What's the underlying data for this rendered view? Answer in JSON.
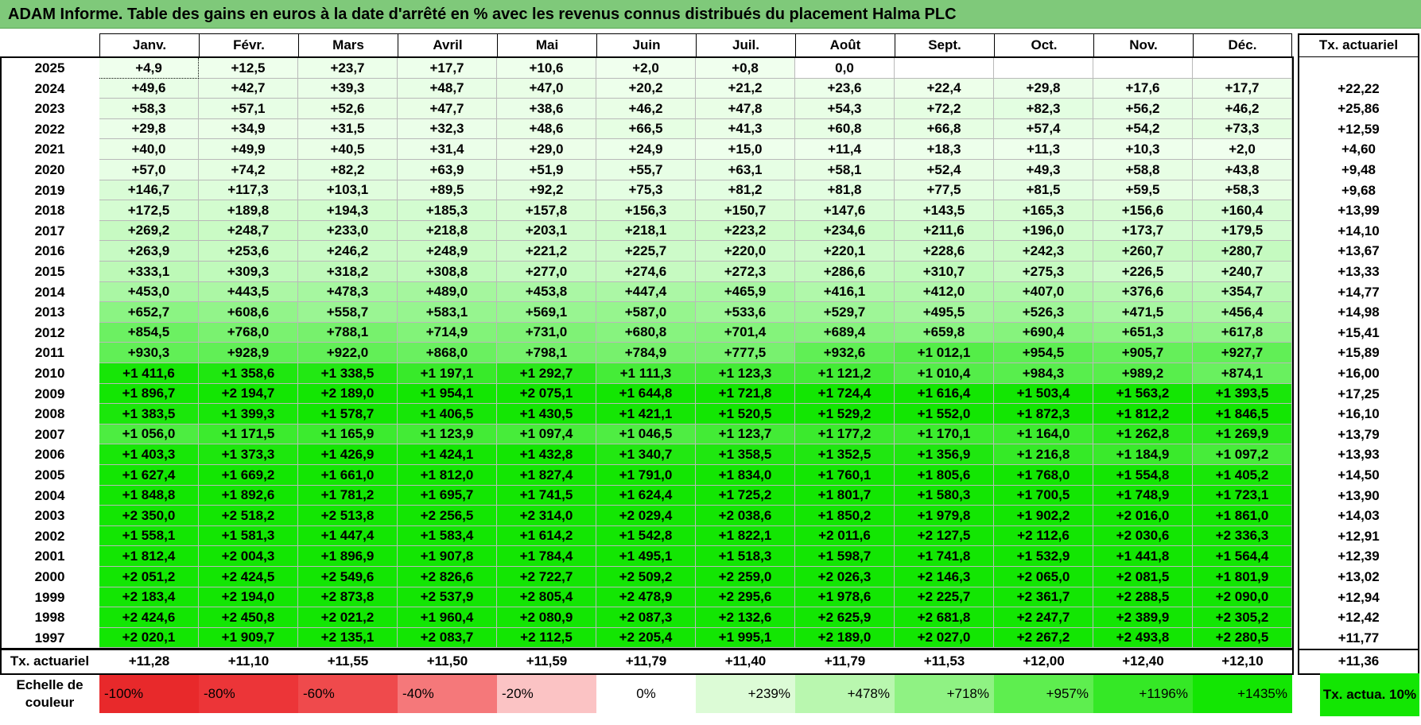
{
  "title": "ADAM Informe. Table des gains en euros à la date d'arrêté en % avec les revenus connus distribués du placement Halma PLC",
  "months": [
    "Janv.",
    "Févr.",
    "Mars",
    "Avril",
    "Mai",
    "Juin",
    "Juil.",
    "Août",
    "Sept.",
    "Oct.",
    "Nov.",
    "Déc."
  ],
  "tx_header": "Tx. actuariel",
  "rows": [
    {
      "year": "2025",
      "values": [
        "+4,9",
        "+12,5",
        "+23,7",
        "+17,7",
        "+10,6",
        "+2,0",
        "+0,8",
        "0,0",
        "",
        "",
        "",
        ""
      ],
      "tx": ""
    },
    {
      "year": "2024",
      "values": [
        "+49,6",
        "+42,7",
        "+39,3",
        "+48,7",
        "+47,0",
        "+20,2",
        "+21,2",
        "+23,6",
        "+22,4",
        "+29,8",
        "+17,6",
        "+17,7"
      ],
      "tx": "+22,22"
    },
    {
      "year": "2023",
      "values": [
        "+58,3",
        "+57,1",
        "+52,6",
        "+47,7",
        "+38,6",
        "+46,2",
        "+47,8",
        "+54,3",
        "+72,2",
        "+82,3",
        "+56,2",
        "+46,2"
      ],
      "tx": "+25,86"
    },
    {
      "year": "2022",
      "values": [
        "+29,8",
        "+34,9",
        "+31,5",
        "+32,3",
        "+48,6",
        "+66,5",
        "+41,3",
        "+60,8",
        "+66,8",
        "+57,4",
        "+54,2",
        "+73,3"
      ],
      "tx": "+12,59"
    },
    {
      "year": "2021",
      "values": [
        "+40,0",
        "+49,9",
        "+40,5",
        "+31,4",
        "+29,0",
        "+24,9",
        "+15,0",
        "+11,4",
        "+18,3",
        "+11,3",
        "+10,3",
        "+2,0"
      ],
      "tx": "+4,60"
    },
    {
      "year": "2020",
      "values": [
        "+57,0",
        "+74,2",
        "+82,2",
        "+63,9",
        "+51,9",
        "+55,7",
        "+63,1",
        "+58,1",
        "+52,4",
        "+49,3",
        "+58,8",
        "+43,8"
      ],
      "tx": "+9,48"
    },
    {
      "year": "2019",
      "values": [
        "+146,7",
        "+117,3",
        "+103,1",
        "+89,5",
        "+92,2",
        "+75,3",
        "+81,2",
        "+81,8",
        "+77,5",
        "+81,5",
        "+59,5",
        "+58,3"
      ],
      "tx": "+9,68"
    },
    {
      "year": "2018",
      "values": [
        "+172,5",
        "+189,8",
        "+194,3",
        "+185,3",
        "+157,8",
        "+156,3",
        "+150,7",
        "+147,6",
        "+143,5",
        "+165,3",
        "+156,6",
        "+160,4"
      ],
      "tx": "+13,99"
    },
    {
      "year": "2017",
      "values": [
        "+269,2",
        "+248,7",
        "+233,0",
        "+218,8",
        "+203,1",
        "+218,1",
        "+223,2",
        "+234,6",
        "+211,6",
        "+196,0",
        "+173,7",
        "+179,5"
      ],
      "tx": "+14,10"
    },
    {
      "year": "2016",
      "values": [
        "+263,9",
        "+253,6",
        "+246,2",
        "+248,9",
        "+221,2",
        "+225,7",
        "+220,0",
        "+220,1",
        "+228,6",
        "+242,3",
        "+260,7",
        "+280,7"
      ],
      "tx": "+13,67"
    },
    {
      "year": "2015",
      "values": [
        "+333,1",
        "+309,3",
        "+318,2",
        "+308,8",
        "+277,0",
        "+274,6",
        "+272,3",
        "+286,6",
        "+310,7",
        "+275,3",
        "+226,5",
        "+240,7"
      ],
      "tx": "+13,33"
    },
    {
      "year": "2014",
      "values": [
        "+453,0",
        "+443,5",
        "+478,3",
        "+489,0",
        "+453,8",
        "+447,4",
        "+465,9",
        "+416,1",
        "+412,0",
        "+407,0",
        "+376,6",
        "+354,7"
      ],
      "tx": "+14,77"
    },
    {
      "year": "2013",
      "values": [
        "+652,7",
        "+608,6",
        "+558,7",
        "+583,1",
        "+569,1",
        "+587,0",
        "+533,6",
        "+529,7",
        "+495,5",
        "+526,3",
        "+471,5",
        "+456,4"
      ],
      "tx": "+14,98"
    },
    {
      "year": "2012",
      "values": [
        "+854,5",
        "+768,0",
        "+788,1",
        "+714,9",
        "+731,0",
        "+680,8",
        "+701,4",
        "+689,4",
        "+659,8",
        "+690,4",
        "+651,3",
        "+617,8"
      ],
      "tx": "+15,41"
    },
    {
      "year": "2011",
      "values": [
        "+930,3",
        "+928,9",
        "+922,0",
        "+868,0",
        "+798,1",
        "+784,9",
        "+777,5",
        "+932,6",
        "+1 012,1",
        "+954,5",
        "+905,7",
        "+927,7"
      ],
      "tx": "+15,89"
    },
    {
      "year": "2010",
      "values": [
        "+1 411,6",
        "+1 358,6",
        "+1 338,5",
        "+1 197,1",
        "+1 292,7",
        "+1 111,3",
        "+1 123,3",
        "+1 121,2",
        "+1 010,4",
        "+984,3",
        "+989,2",
        "+874,1"
      ],
      "tx": "+16,00"
    },
    {
      "year": "2009",
      "values": [
        "+1 896,7",
        "+2 194,7",
        "+2 189,0",
        "+1 954,1",
        "+2 075,1",
        "+1 644,8",
        "+1 721,8",
        "+1 724,4",
        "+1 616,4",
        "+1 503,4",
        "+1 563,2",
        "+1 393,5"
      ],
      "tx": "+17,25"
    },
    {
      "year": "2008",
      "values": [
        "+1 383,5",
        "+1 399,3",
        "+1 578,7",
        "+1 406,5",
        "+1 430,5",
        "+1 421,1",
        "+1 520,5",
        "+1 529,2",
        "+1 552,0",
        "+1 872,3",
        "+1 812,2",
        "+1 846,5"
      ],
      "tx": "+16,10"
    },
    {
      "year": "2007",
      "values": [
        "+1 056,0",
        "+1 171,5",
        "+1 165,9",
        "+1 123,9",
        "+1 097,4",
        "+1 046,5",
        "+1 123,7",
        "+1 177,2",
        "+1 170,1",
        "+1 164,0",
        "+1 262,8",
        "+1 269,9"
      ],
      "tx": "+13,79"
    },
    {
      "year": "2006",
      "values": [
        "+1 403,3",
        "+1 373,3",
        "+1 426,9",
        "+1 424,1",
        "+1 432,8",
        "+1 340,7",
        "+1 358,5",
        "+1 352,5",
        "+1 356,9",
        "+1 216,8",
        "+1 184,9",
        "+1 097,2"
      ],
      "tx": "+13,93"
    },
    {
      "year": "2005",
      "values": [
        "+1 627,4",
        "+1 669,2",
        "+1 661,0",
        "+1 812,0",
        "+1 827,4",
        "+1 791,0",
        "+1 834,0",
        "+1 760,1",
        "+1 805,6",
        "+1 768,0",
        "+1 554,8",
        "+1 405,2"
      ],
      "tx": "+14,50"
    },
    {
      "year": "2004",
      "values": [
        "+1 848,8",
        "+1 892,6",
        "+1 781,2",
        "+1 695,7",
        "+1 741,5",
        "+1 624,4",
        "+1 725,2",
        "+1 801,7",
        "+1 580,3",
        "+1 700,5",
        "+1 748,9",
        "+1 723,1"
      ],
      "tx": "+13,90"
    },
    {
      "year": "2003",
      "values": [
        "+2 350,0",
        "+2 518,2",
        "+2 513,8",
        "+2 256,5",
        "+2 314,0",
        "+2 029,4",
        "+2 038,6",
        "+1 850,2",
        "+1 979,8",
        "+1 902,2",
        "+2 016,0",
        "+1 861,0"
      ],
      "tx": "+14,03"
    },
    {
      "year": "2002",
      "values": [
        "+1 558,1",
        "+1 581,3",
        "+1 447,4",
        "+1 583,4",
        "+1 614,2",
        "+1 542,8",
        "+1 822,1",
        "+2 011,6",
        "+2 127,5",
        "+2 112,6",
        "+2 030,6",
        "+2 336,3"
      ],
      "tx": "+12,91"
    },
    {
      "year": "2001",
      "values": [
        "+1 812,4",
        "+2 004,3",
        "+1 896,9",
        "+1 907,8",
        "+1 784,4",
        "+1 495,1",
        "+1 518,3",
        "+1 598,7",
        "+1 741,8",
        "+1 532,9",
        "+1 441,8",
        "+1 564,4"
      ],
      "tx": "+12,39"
    },
    {
      "year": "2000",
      "values": [
        "+2 051,2",
        "+2 424,5",
        "+2 549,6",
        "+2 826,6",
        "+2 722,7",
        "+2 509,2",
        "+2 259,0",
        "+2 026,3",
        "+2 146,3",
        "+2 065,0",
        "+2 081,5",
        "+1 801,9"
      ],
      "tx": "+13,02"
    },
    {
      "year": "1999",
      "values": [
        "+2 183,4",
        "+2 194,0",
        "+2 873,8",
        "+2 537,9",
        "+2 805,4",
        "+2 478,9",
        "+2 295,6",
        "+1 978,6",
        "+2 225,7",
        "+2 361,7",
        "+2 288,5",
        "+2 090,0"
      ],
      "tx": "+12,94"
    },
    {
      "year": "1998",
      "values": [
        "+2 424,6",
        "+2 450,8",
        "+2 021,2",
        "+1 960,4",
        "+2 080,9",
        "+2 087,3",
        "+2 132,6",
        "+2 625,9",
        "+2 681,8",
        "+2 247,7",
        "+2 389,9",
        "+2 305,2"
      ],
      "tx": "+12,42"
    },
    {
      "year": "1997",
      "values": [
        "+2 020,1",
        "+1 909,7",
        "+2 135,1",
        "+2 083,7",
        "+2 112,5",
        "+2 205,4",
        "+1 995,1",
        "+2 189,0",
        "+2 027,0",
        "+2 267,2",
        "+2 493,8",
        "+2 280,5"
      ],
      "tx": "+11,77"
    }
  ],
  "footer": {
    "label": "Tx. actuariel",
    "values": [
      "+11,28",
      "+11,10",
      "+11,55",
      "+11,50",
      "+11,59",
      "+11,79",
      "+11,40",
      "+11,79",
      "+11,53",
      "+12,00",
      "+12,40",
      "+12,10"
    ],
    "tx": "+11,36"
  },
  "legend": {
    "label": "Echelle de couleur",
    "items": [
      {
        "text": "-100%",
        "color": "#e8292b"
      },
      {
        "text": "-80%",
        "color": "#ec3538"
      },
      {
        "text": "-60%",
        "color": "#ef4a4c"
      },
      {
        "text": "-40%",
        "color": "#f5787a"
      },
      {
        "text": "-20%",
        "color": "#fbc3c4"
      },
      {
        "text": "0%",
        "color": "#ffffff"
      },
      {
        "text": "+239%",
        "color": "#dcfbd6"
      },
      {
        "text": "+478%",
        "color": "#b9f7af"
      },
      {
        "text": "+718%",
        "color": "#8ff283"
      },
      {
        "text": "+957%",
        "color": "#5eee4f"
      },
      {
        "text": "+1196%",
        "color": "#35e826"
      },
      {
        "text": "+1435%",
        "color": "#13e603"
      }
    ],
    "tx_label": "Tx. actua. 10%",
    "tx_color": "#13e603"
  },
  "colors": {
    "title_bg": "#7fc97a"
  }
}
